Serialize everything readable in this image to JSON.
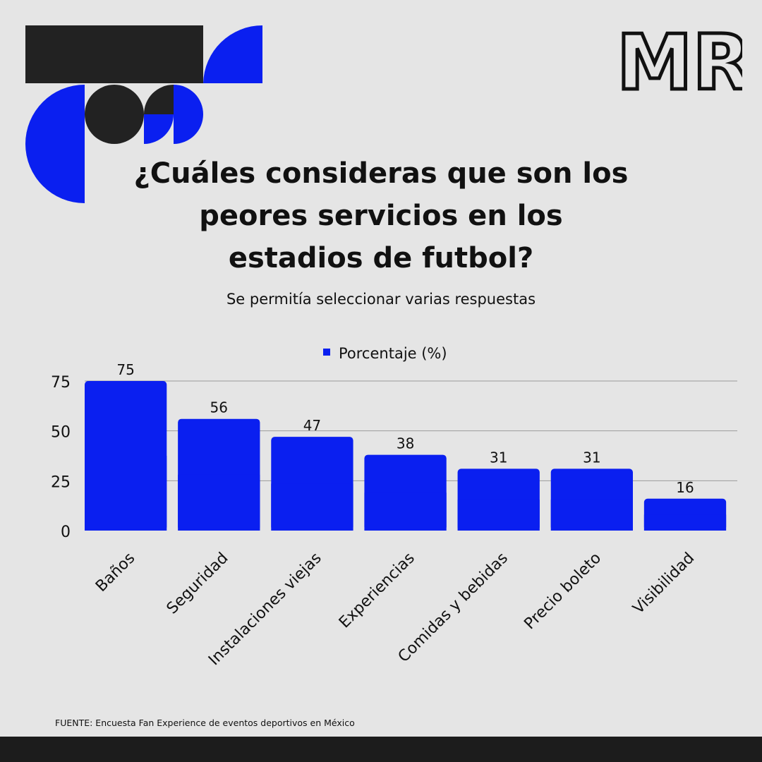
{
  "colors": {
    "background": "#e5e5e5",
    "accent_blue": "#0a1ff0",
    "dark": "#222222",
    "grid": "#9a9a9a"
  },
  "brand": {
    "logo_text": "MR."
  },
  "header": {
    "title": "¿Cuáles consideras que son los peores servicios en los estadios de futbol?",
    "subtitle": "Se permitía seleccionar varias respuestas"
  },
  "chart_data": {
    "type": "bar",
    "categories": [
      "Baños",
      "Seguridad",
      "Instalaciones viejas",
      "Experiencias",
      "Comidas y bebidas",
      "Precio boleto",
      "Visibilidad"
    ],
    "series": [
      {
        "name": "Porcentaje (%)",
        "values": [
          75,
          56,
          47,
          38,
          31,
          31,
          16
        ],
        "color": "#0a1ff0"
      }
    ],
    "ylim": [
      0,
      75
    ],
    "yticks": [
      0,
      25,
      50,
      75
    ],
    "grid": true,
    "legend_position": "top-center",
    "data_labels": true
  },
  "footer": {
    "source": "FUENTE: Encuesta Fan Experience de eventos deportivos en México"
  }
}
